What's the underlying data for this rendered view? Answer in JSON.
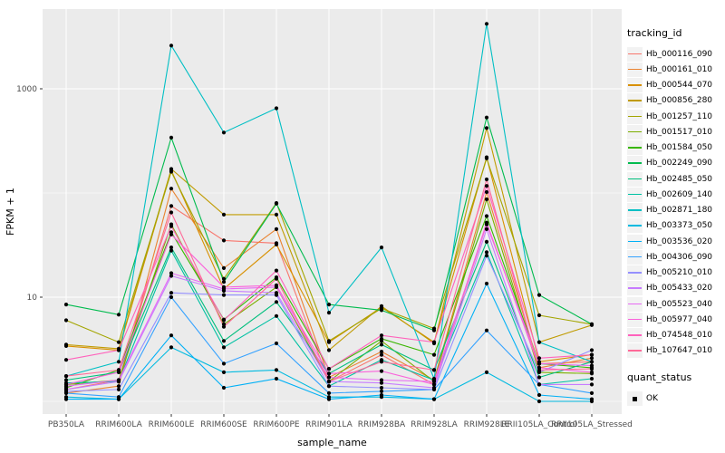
{
  "axes": {
    "x_title": "sample_name",
    "y_title": "FPKM + 1",
    "y_tick_labels": [
      "1000",
      "10"
    ]
  },
  "legend": {
    "color_title": "tracking_id",
    "shape_title": "quant_status",
    "shape_item_label": "OK"
  },
  "colors": {
    "panel_background": "#EBEBEB",
    "gridline": "#FFFFFF",
    "tick_text": "#4D4D4D",
    "point": "#000000",
    "legend_key_background": "#F2F2F2"
  },
  "chart_data": {
    "type": "line",
    "title": "",
    "xlabel": "sample_name",
    "ylabel": "FPKM + 1",
    "y_scale": "log10",
    "y_major_ticks": [
      10,
      1000
    ],
    "y_minor_gridlines": [
      1,
      100
    ],
    "ylim": [
      0.74,
      6000
    ],
    "grid": true,
    "legend_position": "right",
    "point_shape": "filled-black",
    "categories": [
      "PB350LA",
      "RRIM600LA",
      "RRIM600LE",
      "RRIM600SE",
      "RRIM600PE",
      "RRIM901LA",
      "RRIM928BA",
      "RRIM928LA",
      "RRIM928LE",
      "RRII105LA_Control",
      "RRII105LA_Stressed"
    ],
    "series": [
      {
        "name": "Hb_000116_090",
        "color": "#F8766D",
        "values": [
          1.3,
          1.6,
          75,
          35,
          33,
          1.55,
          2.8,
          1.45,
          50,
          2.3,
          2.4
        ]
      },
      {
        "name": "Hb_000161_010",
        "color": "#EA8331",
        "values": [
          1.2,
          1.4,
          110,
          19,
          45,
          1.7,
          3.0,
          1.6,
          102,
          2.1,
          2.6
        ]
      },
      {
        "name": "Hb_000544_070",
        "color": "#D89000",
        "values": [
          3.4,
          3.1,
          165,
          12,
          32,
          3.7,
          8.0,
          3.7,
          220,
          2.4,
          2.8
        ]
      },
      {
        "name": "Hb_000856_280",
        "color": "#C09B00",
        "values": [
          3.5,
          3.2,
          170,
          62,
          62,
          3.1,
          8.2,
          3.6,
          420,
          3.7,
          5.4
        ]
      },
      {
        "name": "Hb_001257_110",
        "color": "#A3A500",
        "values": [
          6.0,
          3.7,
          160,
          15,
          80,
          3.8,
          7.8,
          5.0,
          215,
          6.7,
          5.5
        ]
      },
      {
        "name": "Hb_001517_010",
        "color": "#7CAE00",
        "values": [
          1.45,
          1.6,
          50,
          5.5,
          12.5,
          1.55,
          3.8,
          1.55,
          87,
          1.9,
          1.85
        ]
      },
      {
        "name": "Hb_001584_050",
        "color": "#39B600",
        "values": [
          1.35,
          2.0,
          42,
          6.1,
          15.5,
          2.05,
          4.0,
          2.8,
          60,
          2.3,
          2.1
        ]
      },
      {
        "name": "Hb_002249_090",
        "color": "#00BB4E",
        "values": [
          8.5,
          6.8,
          340,
          14,
          79,
          8.5,
          7.5,
          4.8,
          530,
          10.5,
          5.5
        ]
      },
      {
        "name": "Hb_002485_050",
        "color": "#00BF7D",
        "values": [
          1.6,
          1.9,
          30,
          3.8,
          9.0,
          1.85,
          3.5,
          2.0,
          34,
          1.7,
          2.4
        ]
      },
      {
        "name": "Hb_002609_140",
        "color": "#00C1A3",
        "values": [
          1.5,
          1.55,
          28,
          3.3,
          6.6,
          1.4,
          2.5,
          1.6,
          27,
          1.45,
          1.65
        ]
      },
      {
        "name": "Hb_002871_180",
        "color": "#00BFC4",
        "values": [
          1.75,
          2.4,
          2600,
          380,
          650,
          7.1,
          30,
          1.65,
          4200,
          3.7,
          2.4
        ]
      },
      {
        "name": "Hb_003373_050",
        "color": "#00BAE0",
        "values": [
          1.1,
          1.05,
          3.3,
          1.9,
          2.0,
          1.1,
          1.1,
          1.05,
          1.9,
          1.0,
          1.0
        ]
      },
      {
        "name": "Hb_003536_020",
        "color": "#00B0F6",
        "values": [
          1.05,
          1.05,
          4.3,
          1.35,
          1.65,
          1.05,
          1.15,
          1.05,
          13.5,
          1.15,
          1.05
        ]
      },
      {
        "name": "Hb_004306_090",
        "color": "#35A2FF",
        "values": [
          1.2,
          1.1,
          10,
          2.3,
          3.6,
          1.2,
          1.25,
          1.3,
          4.8,
          1.45,
          1.2
        ]
      },
      {
        "name": "Hb_005210_010",
        "color": "#9590FF",
        "values": [
          1.25,
          1.3,
          11,
          10.5,
          10.5,
          1.4,
          1.35,
          1.3,
          25,
          1.9,
          3.1
        ]
      },
      {
        "name": "Hb_005433_020",
        "color": "#C77CFF",
        "values": [
          1.3,
          1.55,
          16,
          11.5,
          11,
          1.55,
          1.5,
          1.35,
          45,
          1.45,
          1.45
        ]
      },
      {
        "name": "Hb_005523_040",
        "color": "#E76BF3",
        "values": [
          1.4,
          1.6,
          17,
          12,
          12.5,
          1.7,
          1.6,
          1.55,
          50,
          2.3,
          2.2
        ]
      },
      {
        "name": "Hb_005977_040",
        "color": "#FA62DB",
        "values": [
          1.45,
          1.9,
          40,
          12.5,
          13,
          1.85,
          1.95,
          1.45,
          52,
          2.1,
          1.9
        ]
      },
      {
        "name": "Hb_074548_010",
        "color": "#FF62BC",
        "values": [
          2.5,
          3.1,
          48,
          6.0,
          18,
          2.05,
          4.3,
          3.7,
          117,
          2.6,
          2.8
        ]
      },
      {
        "name": "Hb_107647_010",
        "color": "#FF6A98",
        "values": [
          1.75,
          2.0,
          65,
          5.2,
          15,
          1.55,
          2.4,
          2.0,
          135,
          2.0,
          2.05
        ]
      }
    ],
    "quant_status_values": [
      "OK"
    ]
  }
}
